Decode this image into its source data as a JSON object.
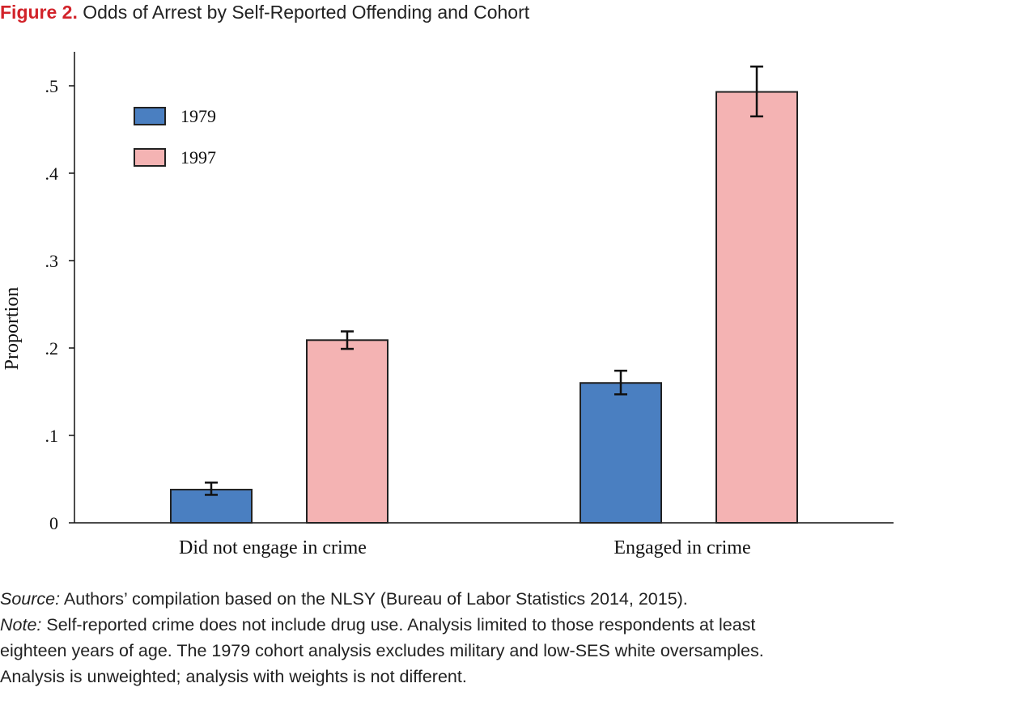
{
  "figure": {
    "label": "Figure 2.",
    "title": "Odds of Arrest by Self-Reported Offending and Cohort"
  },
  "chart_data": {
    "type": "bar",
    "categories": [
      "Did not engage in crime",
      "Engaged in crime"
    ],
    "series": [
      {
        "name": "1979",
        "color": "#4a7fc1",
        "values": [
          0.038,
          0.16
        ],
        "error_low": [
          0.032,
          0.147
        ],
        "error_high": [
          0.046,
          0.174
        ]
      },
      {
        "name": "1997",
        "color": "#f4b3b3",
        "values": [
          0.209,
          0.493
        ],
        "error_low": [
          0.199,
          0.465
        ],
        "error_high": [
          0.219,
          0.522
        ]
      }
    ],
    "ylabel": "Proportion",
    "xlabel": "",
    "ylim": [
      0,
      0.54
    ],
    "yticks": [
      0,
      0.1,
      0.2,
      0.3,
      0.4,
      0.5
    ],
    "ytick_labels": [
      "0",
      ".1",
      ".2",
      ".3",
      ".4",
      ".5"
    ],
    "legend_position": "top-left",
    "grid": false
  },
  "notes": {
    "source_label": "Source:",
    "source_text": " Authors’ compilation based on the NLSY (Bureau of Labor Statistics 2014, 2015).",
    "note_label": "Note:",
    "note_line1": " Self-reported crime does not include drug use. Analysis limited to those respondents at least",
    "note_line2": "eighteen years of age. The 1979 cohort analysis excludes military and low-SES white oversamples.",
    "note_line3": "Analysis is unweighted; analysis with weights is not different."
  }
}
